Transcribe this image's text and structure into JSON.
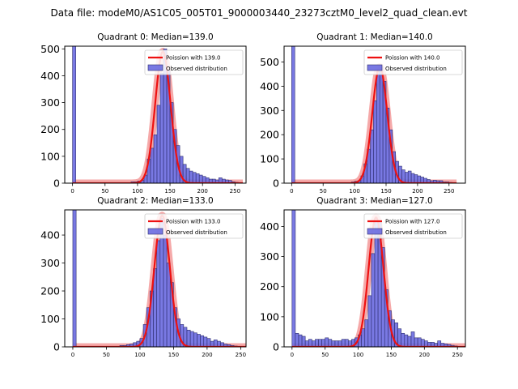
{
  "title": "Data file: modeM0/AS1C05_005T01_9000003440_23273cztM0_level2_quad_clean.evt",
  "colors": {
    "hist_fill": "#6a6ae0",
    "hist_edge": "#2d2d6e",
    "fit_line": "#ee1111",
    "fit_band": "#f4a0a0"
  },
  "chart_data": [
    {
      "type": "bar",
      "title": "Quadrant 0: Median=139.0",
      "legend": [
        "Poission with 139.0",
        "Observed distribution"
      ],
      "legend_loc": "upper-right",
      "xlim": [
        -12,
        267
      ],
      "ylim": [
        0,
        510
      ],
      "xticks": [
        0,
        50,
        100,
        150,
        200,
        250
      ],
      "yticks": [
        0,
        100,
        200,
        300,
        400,
        500
      ],
      "fit_mean": 139.0,
      "fit_peak": 490,
      "bins_left": [
        0,
        90,
        95,
        100,
        105,
        110,
        115,
        120,
        125,
        130,
        135,
        140,
        145,
        150,
        155,
        160,
        165,
        170,
        175,
        180,
        185,
        190,
        195,
        200,
        205,
        210,
        215,
        220,
        225,
        230,
        235,
        240,
        245,
        250
      ],
      "bins_width": 5,
      "counts": [
        515,
        5,
        5,
        8,
        10,
        30,
        90,
        130,
        180,
        290,
        410,
        500,
        420,
        300,
        200,
        140,
        100,
        70,
        55,
        45,
        40,
        35,
        30,
        25,
        20,
        15,
        15,
        12,
        20,
        15,
        12,
        10,
        5,
        3
      ]
    },
    {
      "type": "bar",
      "title": "Quadrant 1: Median=140.0",
      "legend": [
        "Poission with 140.0",
        "Observed distribution"
      ],
      "legend_loc": "upper-right",
      "xlim": [
        -12,
        276
      ],
      "ylim": [
        0,
        565
      ],
      "xticks": [
        0,
        50,
        100,
        150,
        200,
        250
      ],
      "yticks": [
        0,
        100,
        200,
        300,
        400,
        500
      ],
      "fit_mean": 140.0,
      "fit_peak": 480,
      "bins_left": [
        0,
        95,
        100,
        105,
        110,
        115,
        120,
        125,
        130,
        135,
        140,
        145,
        150,
        155,
        160,
        165,
        170,
        175,
        180,
        185,
        190,
        195,
        200,
        205,
        210,
        215,
        220,
        225,
        230,
        235,
        240,
        245,
        250
      ],
      "bins_width": 5,
      "counts": [
        570,
        5,
        8,
        10,
        30,
        80,
        140,
        220,
        340,
        460,
        480,
        420,
        310,
        220,
        130,
        90,
        70,
        55,
        45,
        50,
        40,
        35,
        30,
        25,
        20,
        15,
        10,
        12,
        10,
        10,
        5,
        5,
        3
      ]
    },
    {
      "type": "bar",
      "title": "Quadrant 2: Median=133.0",
      "legend": [
        "Poission with 133.0",
        "Observed distribution"
      ],
      "legend_loc": "upper-right",
      "xlim": [
        -12,
        258
      ],
      "ylim": [
        0,
        490
      ],
      "xticks": [
        0,
        50,
        100,
        150,
        200,
        250
      ],
      "yticks": [
        0,
        100,
        200,
        300,
        400
      ],
      "fit_mean": 133.0,
      "fit_peak": 470,
      "bins_left": [
        0,
        70,
        75,
        80,
        85,
        90,
        95,
        100,
        105,
        110,
        115,
        120,
        125,
        130,
        135,
        140,
        145,
        150,
        155,
        160,
        165,
        170,
        175,
        180,
        185,
        190,
        195,
        200,
        205,
        210,
        215,
        220,
        225,
        230,
        235,
        240
      ],
      "bins_width": 5,
      "counts": [
        500,
        5,
        5,
        8,
        10,
        15,
        20,
        30,
        80,
        140,
        200,
        280,
        380,
        460,
        400,
        300,
        230,
        140,
        100,
        80,
        70,
        60,
        55,
        50,
        45,
        40,
        35,
        30,
        20,
        25,
        20,
        15,
        10,
        8,
        5,
        3
      ]
    },
    {
      "type": "bar",
      "title": "Quadrant 3: Median=127.0",
      "legend": [
        "Poission with 127.0",
        "Observed distribution"
      ],
      "legend_loc": "upper-right",
      "xlim": [
        -12,
        262
      ],
      "ylim": [
        0,
        455
      ],
      "xticks": [
        0,
        50,
        100,
        150,
        200,
        250
      ],
      "yticks": [
        0,
        100,
        200,
        300,
        400
      ],
      "fit_mean": 127.0,
      "fit_peak": 430,
      "bins_left": [
        0,
        5,
        10,
        15,
        20,
        25,
        30,
        35,
        40,
        45,
        50,
        55,
        60,
        65,
        70,
        75,
        80,
        85,
        90,
        95,
        100,
        105,
        110,
        115,
        120,
        125,
        130,
        135,
        140,
        145,
        150,
        155,
        160,
        165,
        170,
        175,
        180,
        185,
        190,
        195,
        200,
        205,
        210,
        215,
        220,
        225,
        230,
        235,
        240,
        245
      ],
      "bins_width": 5,
      "counts": [
        460,
        45,
        40,
        35,
        20,
        25,
        20,
        25,
        25,
        25,
        30,
        25,
        20,
        20,
        20,
        25,
        25,
        20,
        25,
        30,
        40,
        60,
        90,
        170,
        310,
        420,
        420,
        330,
        190,
        120,
        90,
        80,
        60,
        45,
        40,
        35,
        50,
        30,
        30,
        25,
        20,
        15,
        15,
        12,
        20,
        12,
        10,
        8,
        5,
        3
      ]
    }
  ]
}
